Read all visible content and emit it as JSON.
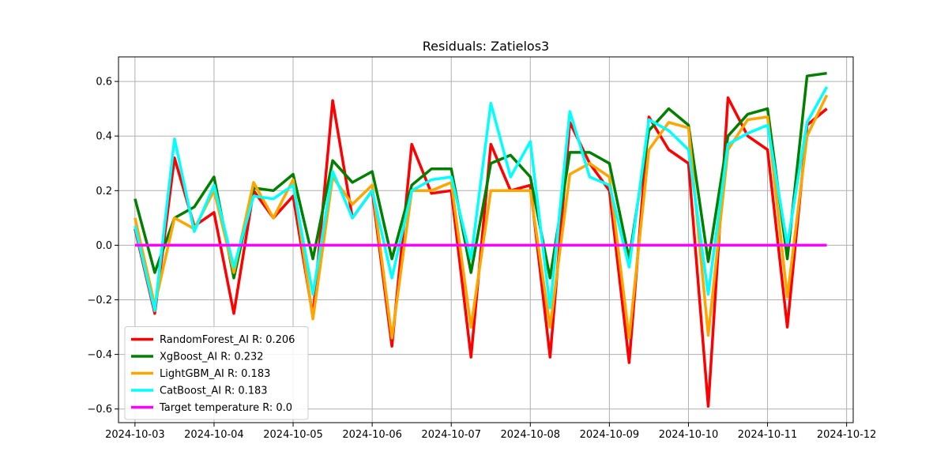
{
  "chart_data": {
    "type": "line",
    "title": "Residuals: Zatielos3",
    "xlabel": "",
    "ylabel": "",
    "xlim": [
      "2024-10-02 19:00",
      "2024-10-12 02:00"
    ],
    "ylim": [
      -0.65,
      0.69
    ],
    "x_ticks": [
      "2024-10-03",
      "2024-10-04",
      "2024-10-05",
      "2024-10-06",
      "2024-10-07",
      "2024-10-08",
      "2024-10-09",
      "2024-10-10",
      "2024-10-11",
      "2024-10-12"
    ],
    "y_ticks": [
      -0.6,
      -0.4,
      -0.2,
      0.0,
      0.2,
      0.4,
      0.6
    ],
    "y_tick_labels": [
      "−0.6",
      "−0.4",
      "−0.2",
      "0.0",
      "0.2",
      "0.4",
      "0.6"
    ],
    "grid": true,
    "legend_position": "lower-left",
    "x": [
      "2024-10-03 00:00",
      "2024-10-03 06:00",
      "2024-10-03 12:00",
      "2024-10-03 18:00",
      "2024-10-04 00:00",
      "2024-10-04 06:00",
      "2024-10-04 12:00",
      "2024-10-04 18:00",
      "2024-10-05 00:00",
      "2024-10-05 06:00",
      "2024-10-05 12:00",
      "2024-10-05 18:00",
      "2024-10-06 00:00",
      "2024-10-06 06:00",
      "2024-10-06 12:00",
      "2024-10-06 18:00",
      "2024-10-07 00:00",
      "2024-10-07 06:00",
      "2024-10-07 12:00",
      "2024-10-07 18:00",
      "2024-10-08 00:00",
      "2024-10-08 06:00",
      "2024-10-08 12:00",
      "2024-10-08 18:00",
      "2024-10-09 00:00",
      "2024-10-09 06:00",
      "2024-10-09 12:00",
      "2024-10-09 18:00",
      "2024-10-10 00:00",
      "2024-10-10 06:00",
      "2024-10-10 12:00",
      "2024-10-10 18:00",
      "2024-10-11 00:00",
      "2024-10-11 06:00",
      "2024-10-11 12:00",
      "2024-10-11 18:00"
    ],
    "series": [
      {
        "name": "RandomForest_AI R: 0.206",
        "color": "#ff0000",
        "values": [
          0.06,
          -0.25,
          0.32,
          0.07,
          0.12,
          -0.25,
          0.2,
          0.1,
          0.18,
          -0.26,
          0.53,
          0.1,
          0.2,
          -0.37,
          0.37,
          0.19,
          0.2,
          -0.41,
          0.37,
          0.2,
          0.22,
          -0.41,
          0.45,
          0.3,
          0.2,
          -0.43,
          0.47,
          0.35,
          0.3,
          -0.59,
          0.54,
          0.4,
          0.35,
          -0.3,
          0.44,
          0.5
        ]
      },
      {
        "name": "XgBoost_AI R: 0.232",
        "color": "#008000",
        "values": [
          0.17,
          -0.1,
          0.1,
          0.14,
          0.25,
          -0.12,
          0.21,
          0.2,
          0.26,
          -0.05,
          0.31,
          0.23,
          0.27,
          -0.05,
          0.22,
          0.28,
          0.28,
          -0.1,
          0.3,
          0.33,
          0.25,
          -0.12,
          0.34,
          0.34,
          0.3,
          -0.05,
          0.42,
          0.5,
          0.44,
          -0.06,
          0.4,
          0.48,
          0.5,
          -0.05,
          0.62,
          0.63
        ]
      },
      {
        "name": "LightGBM_AI R: 0.183",
        "color": "#ffa500",
        "values": [
          0.1,
          -0.22,
          0.1,
          0.06,
          0.2,
          -0.1,
          0.23,
          0.1,
          0.24,
          -0.27,
          0.25,
          0.15,
          0.22,
          -0.34,
          0.2,
          0.2,
          0.23,
          -0.3,
          0.2,
          0.2,
          0.2,
          -0.3,
          0.26,
          0.3,
          0.25,
          -0.34,
          0.35,
          0.45,
          0.43,
          -0.33,
          0.35,
          0.46,
          0.47,
          -0.19,
          0.4,
          0.55
        ]
      },
      {
        "name": "CatBoost_AI R: 0.183",
        "color": "#00ffff",
        "values": [
          0.07,
          -0.24,
          0.39,
          0.05,
          0.22,
          -0.08,
          0.18,
          0.17,
          0.22,
          -0.18,
          0.27,
          0.1,
          0.2,
          -0.12,
          0.2,
          0.24,
          0.25,
          -0.05,
          0.52,
          0.25,
          0.38,
          -0.23,
          0.49,
          0.25,
          0.22,
          -0.08,
          0.46,
          0.42,
          0.35,
          -0.18,
          0.37,
          0.41,
          0.44,
          0.0,
          0.45,
          0.58
        ]
      },
      {
        "name": "Target temperature R: 0.0",
        "color": "#ff00ff",
        "values": [
          0,
          0,
          0,
          0,
          0,
          0,
          0,
          0,
          0,
          0,
          0,
          0,
          0,
          0,
          0,
          0,
          0,
          0,
          0,
          0,
          0,
          0,
          0,
          0,
          0,
          0,
          0,
          0,
          0,
          0,
          0,
          0,
          0,
          0,
          0,
          0
        ]
      }
    ]
  }
}
